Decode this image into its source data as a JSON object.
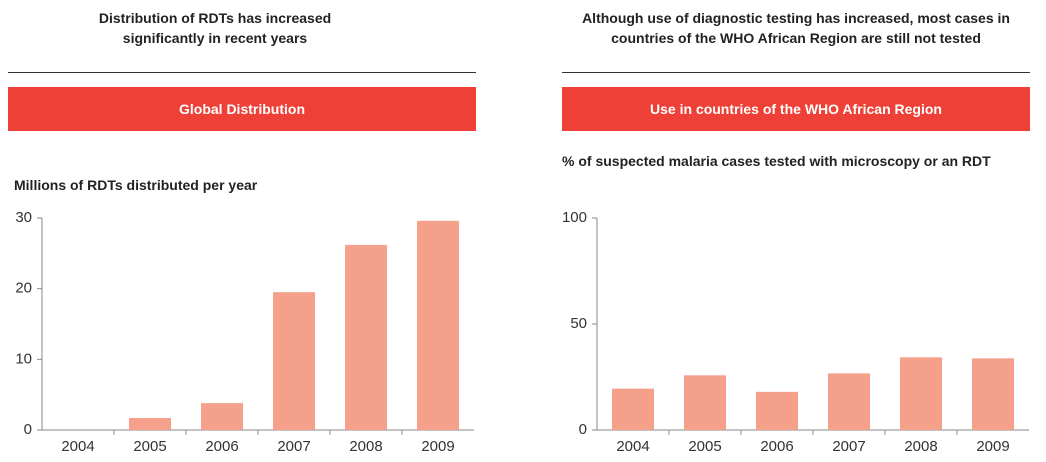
{
  "chart_data": [
    {
      "type": "bar",
      "title": "Distribution of RDTs has increased significantly in recent years",
      "subtitle": "Global Distribution",
      "ylabel": "Millions of RDTs distributed per year",
      "categories": [
        "2004",
        "2005",
        "2006",
        "2007",
        "2008",
        "2009"
      ],
      "values": [
        0,
        1.7,
        3.8,
        19.5,
        26.2,
        29.6
      ],
      "color": "#f4a08a",
      "ylim": [
        0,
        30
      ],
      "yticks": [
        0,
        10,
        20,
        30
      ]
    },
    {
      "type": "bar",
      "title": "Although use of diagnostic testing has increased, most cases in countries of the WHO African Region are still not tested",
      "subtitle": "Use in countries of the WHO African Region",
      "ylabel": "% of suspected malaria cases tested with microscopy or an RDT",
      "categories": [
        "2004",
        "2005",
        "2006",
        "2007",
        "2008",
        "2009"
      ],
      "values": [
        19.5,
        25.8,
        18,
        26.7,
        34.3,
        33.8
      ],
      "color": "#f4a08a",
      "ylim": [
        0,
        100
      ],
      "yticks": [
        0,
        50,
        100
      ]
    }
  ]
}
